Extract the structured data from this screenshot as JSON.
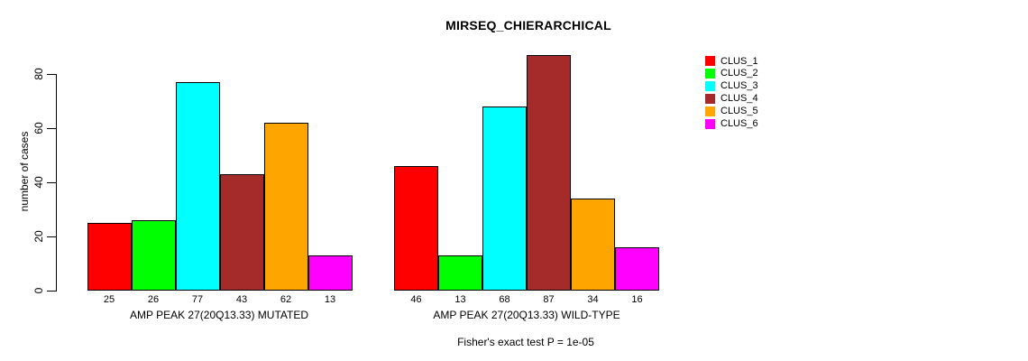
{
  "chart_data": {
    "type": "bar",
    "title": "MIRSEQ_CHIERARCHICAL",
    "ylabel": "number of cases",
    "xlabel": "",
    "caption": "Fisher's exact test P = 1e-05",
    "ylim": [
      0,
      90
    ],
    "yticks": [
      0,
      20,
      40,
      60,
      80
    ],
    "grid": false,
    "legend_position": "top-right",
    "series_names": [
      "CLUS_1",
      "CLUS_2",
      "CLUS_3",
      "CLUS_4",
      "CLUS_5",
      "CLUS_6"
    ],
    "series_colors": [
      "#FF0000",
      "#00FF00",
      "#00FFFF",
      "#A52A2A",
      "#FFA500",
      "#FF00FF"
    ],
    "groups": [
      {
        "label": "AMP PEAK 27(20Q13.33) MUTATED",
        "values": [
          25,
          26,
          77,
          43,
          62,
          13
        ]
      },
      {
        "label": "AMP PEAK 27(20Q13.33) WILD-TYPE",
        "values": [
          46,
          13,
          68,
          87,
          34,
          16
        ]
      }
    ],
    "bar_value_labels_shown": true
  },
  "legend": {
    "items": [
      {
        "label": "CLUS_1",
        "color": "#FF0000"
      },
      {
        "label": "CLUS_2",
        "color": "#00FF00"
      },
      {
        "label": "CLUS_3",
        "color": "#00FFFF"
      },
      {
        "label": "CLUS_4",
        "color": "#A52A2A"
      },
      {
        "label": "CLUS_5",
        "color": "#FFA500"
      },
      {
        "label": "CLUS_6",
        "color": "#FF00FF"
      }
    ]
  }
}
